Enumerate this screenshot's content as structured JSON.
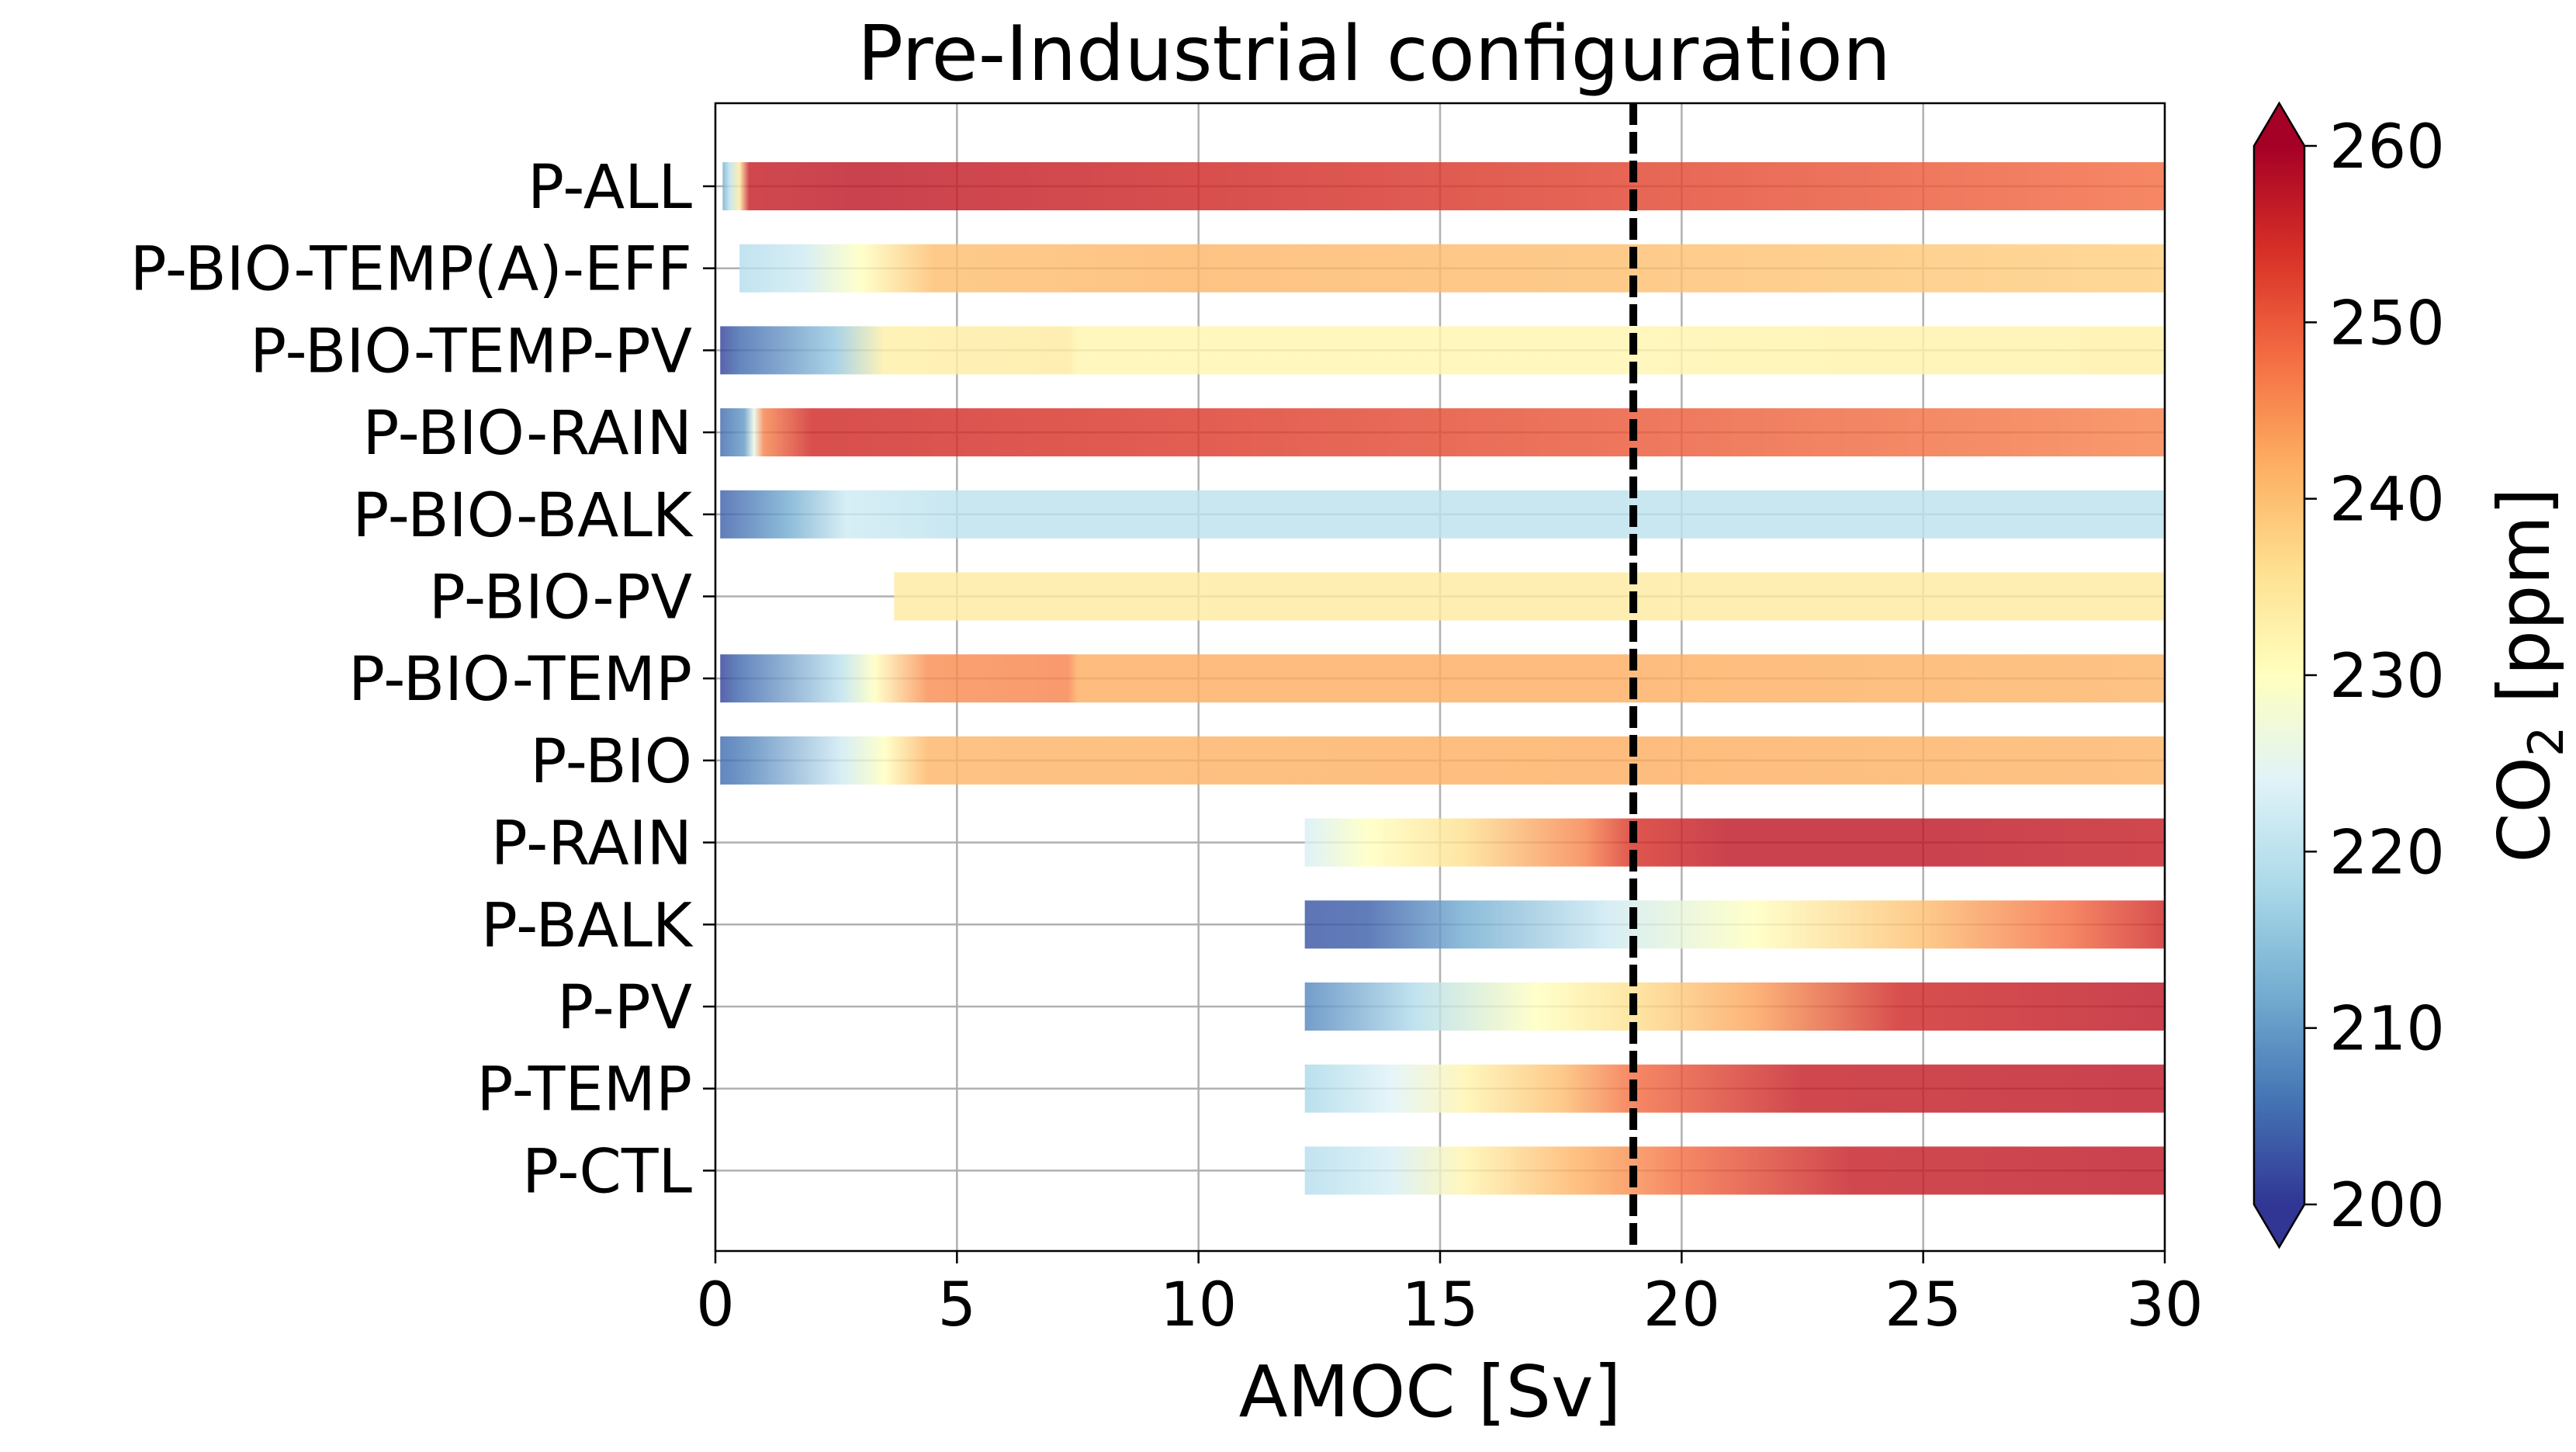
{
  "chart_data": {
    "type": "bar",
    "title": "Pre-Industrial configuration",
    "xlabel": "AMOC [Sv]",
    "xlim": [
      0,
      30
    ],
    "xticks": [
      0,
      5,
      10,
      15,
      20,
      25,
      30
    ],
    "reference_line_x": 19,
    "grid": true,
    "categories": [
      "P-ALL",
      "P-BIO-TEMP(A)-EFF",
      "P-BIO-TEMP-PV",
      "P-BIO-RAIN",
      "P-BIO-BALK",
      "P-BIO-PV",
      "P-BIO-TEMP",
      "P-BIO",
      "P-RAIN",
      "P-BALK",
      "P-PV",
      "P-TEMP",
      "P-CTL"
    ],
    "series": [
      {
        "label": "P-ALL",
        "stops": [
          [
            0.15,
            212
          ],
          [
            0.3,
            220
          ],
          [
            0.5,
            234
          ],
          [
            0.7,
            256
          ],
          [
            3,
            257
          ],
          [
            10,
            255
          ],
          [
            19,
            252
          ],
          [
            30,
            248
          ]
        ]
      },
      {
        "label": "P-BIO-TEMP(A)-EFF",
        "stops": [
          [
            0.5,
            219
          ],
          [
            1.8,
            222
          ],
          [
            3,
            230
          ],
          [
            4.5,
            240
          ],
          [
            10,
            241
          ],
          [
            19,
            240
          ],
          [
            30,
            238
          ]
        ]
      },
      {
        "label": "P-BIO-TEMP-PV",
        "stops": [
          [
            0.1,
            201
          ],
          [
            0.5,
            205
          ],
          [
            2.5,
            216
          ],
          [
            3.5,
            233
          ],
          [
            7.3,
            234
          ],
          [
            7.5,
            232
          ],
          [
            19,
            232
          ],
          [
            30,
            233
          ]
        ]
      },
      {
        "label": "P-BIO-RAIN",
        "stops": [
          [
            0.1,
            205
          ],
          [
            0.6,
            210
          ],
          [
            0.8,
            226
          ],
          [
            1.0,
            246
          ],
          [
            2,
            255
          ],
          [
            10,
            253
          ],
          [
            19,
            250
          ],
          [
            30,
            246
          ]
        ]
      },
      {
        "label": "P-BIO-BALK",
        "stops": [
          [
            0.1,
            204
          ],
          [
            1.5,
            212
          ],
          [
            2.7,
            222
          ],
          [
            5,
            220
          ],
          [
            19,
            220
          ],
          [
            30,
            220
          ]
        ]
      },
      {
        "label": "P-BIO-PV",
        "stops": [
          [
            3.7,
            234
          ],
          [
            30,
            234
          ]
        ]
      },
      {
        "label": "P-BIO-TEMP",
        "stops": [
          [
            0.1,
            201
          ],
          [
            0.5,
            205
          ],
          [
            2.6,
            220
          ],
          [
            3.3,
            230
          ],
          [
            4.4,
            245
          ],
          [
            7.3,
            246
          ],
          [
            7.5,
            242
          ],
          [
            19,
            242
          ],
          [
            30,
            241
          ]
        ]
      },
      {
        "label": "P-BIO",
        "stops": [
          [
            0.1,
            205
          ],
          [
            0.5,
            207
          ],
          [
            2.6,
            222
          ],
          [
            3.5,
            230
          ],
          [
            4.4,
            241
          ],
          [
            19,
            242
          ],
          [
            30,
            241
          ]
        ]
      },
      {
        "label": "P-RAIN",
        "stops": [
          [
            12.2,
            223
          ],
          [
            13.5,
            230
          ],
          [
            15.5,
            236
          ],
          [
            18,
            246
          ],
          [
            19,
            254
          ],
          [
            21,
            257
          ],
          [
            25,
            257
          ],
          [
            30,
            256
          ]
        ]
      },
      {
        "label": "P-BALK",
        "stops": [
          [
            12.2,
            203
          ],
          [
            13.5,
            204
          ],
          [
            15.5,
            212
          ],
          [
            18.5,
            222
          ],
          [
            21.5,
            230
          ],
          [
            25,
            240
          ],
          [
            28,
            248
          ],
          [
            30,
            255
          ]
        ]
      },
      {
        "label": "P-PV",
        "stops": [
          [
            12.2,
            208
          ],
          [
            14.5,
            219
          ],
          [
            17,
            230
          ],
          [
            19,
            236
          ],
          [
            21.5,
            243
          ],
          [
            24.5,
            255
          ],
          [
            30,
            257
          ]
        ]
      },
      {
        "label": "P-TEMP",
        "stops": [
          [
            12.2,
            218
          ],
          [
            14,
            224
          ],
          [
            15.5,
            232
          ],
          [
            17.5,
            240
          ],
          [
            19,
            248
          ],
          [
            22.5,
            256
          ],
          [
            30,
            257
          ]
        ]
      },
      {
        "label": "P-CTL",
        "stops": [
          [
            12.2,
            219
          ],
          [
            14,
            223
          ],
          [
            15.5,
            232
          ],
          [
            18,
            242
          ],
          [
            20,
            248
          ],
          [
            23.5,
            256
          ],
          [
            30,
            257
          ]
        ]
      }
    ],
    "colorbar": {
      "label_main": "CO",
      "label_sub": "2",
      "label_unit": " [ppm]",
      "range": [
        200,
        260
      ],
      "ticks": [
        200,
        210,
        220,
        230,
        240,
        250,
        260
      ],
      "extend": "both",
      "colormap": "RdYlBu_r",
      "colors": [
        "#313695",
        "#4575b4",
        "#74add1",
        "#abd9e9",
        "#e0f3f8",
        "#ffffbf",
        "#fee090",
        "#fdae61",
        "#f46d43",
        "#d73027",
        "#a50026"
      ]
    }
  }
}
